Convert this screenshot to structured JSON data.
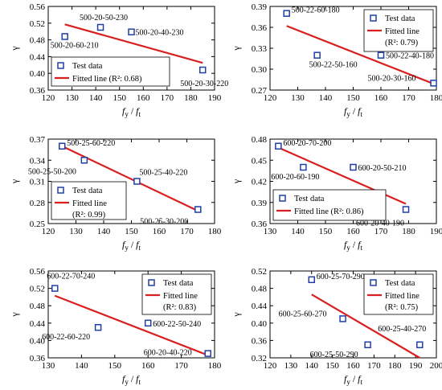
{
  "chart_data": [
    {
      "type": "scatter",
      "xlabel": "f",
      "xlabel_sub1": "y",
      "xlabel_slash": "/",
      "xlabel2": "f",
      "xlabel_sub2": "t",
      "ylabel": "γ",
      "xlim": [
        120,
        190
      ],
      "ylim": [
        0.36,
        0.56
      ],
      "xticks": [
        120,
        130,
        140,
        150,
        160,
        170,
        180,
        190
      ],
      "yticks": [
        0.36,
        0.4,
        0.44,
        0.48,
        0.52,
        0.56
      ],
      "ytick_labels": [
        "0.36",
        "0.40",
        "0.44",
        "0.48",
        "0.52",
        "0.56"
      ],
      "points": [
        {
          "x": 127,
          "y": 0.488,
          "label": "500-20-60-210"
        },
        {
          "x": 142,
          "y": 0.51,
          "label": "500-20-50-230"
        },
        {
          "x": 155,
          "y": 0.499,
          "label": "500-20-40-230"
        },
        {
          "x": 185,
          "y": 0.408,
          "label": "500-20-30-220"
        }
      ],
      "fit": {
        "x": [
          127,
          185
        ],
        "y": [
          0.517,
          0.425
        ]
      },
      "legend": {
        "position": "bottom-left",
        "data_label": "Test data",
        "fit_label": "Fitted line  (R²: 0.68)"
      }
    },
    {
      "type": "scatter",
      "xlabel": "f",
      "xlabel_sub1": "y",
      "xlabel_slash": "/",
      "xlabel2": "f",
      "xlabel_sub2": "t",
      "ylabel": "γ",
      "xlim": [
        120,
        180
      ],
      "ylim": [
        0.27,
        0.39
      ],
      "xticks": [
        120,
        130,
        140,
        150,
        160,
        170,
        180
      ],
      "yticks": [
        0.27,
        0.3,
        0.33,
        0.36,
        0.39
      ],
      "ytick_labels": [
        "0.27",
        "0.30",
        "0.33",
        "0.36",
        "0.39"
      ],
      "points": [
        {
          "x": 126,
          "y": 0.38,
          "label": "500-22-60-180"
        },
        {
          "x": 137,
          "y": 0.32,
          "label": "500-22-50-160"
        },
        {
          "x": 160,
          "y": 0.32,
          "label": "500-22-40-180"
        },
        {
          "x": 179,
          "y": 0.28,
          "label": "500-20-30-160"
        }
      ],
      "fit": {
        "x": [
          126,
          179
        ],
        "y": [
          0.362,
          0.279
        ]
      },
      "legend": {
        "position": "top-right",
        "data_label": "Test data",
        "fit_label": "Fitted line",
        "r2_label": "(R²: 0.79)"
      }
    },
    {
      "type": "scatter",
      "xlabel": "f",
      "xlabel_sub1": "y",
      "xlabel_slash": "/",
      "xlabel2": "f",
      "xlabel_sub2": "t",
      "ylabel": "γ",
      "xlim": [
        120,
        180
      ],
      "ylim": [
        0.25,
        0.37
      ],
      "xticks": [
        120,
        130,
        140,
        150,
        160,
        170,
        180
      ],
      "yticks": [
        0.25,
        0.28,
        0.31,
        0.34,
        0.37
      ],
      "ytick_labels": [
        "0.25",
        "0.28",
        "0.31",
        "0.34",
        "0.37"
      ],
      "points": [
        {
          "x": 125,
          "y": 0.36,
          "label": "500-25-60-220"
        },
        {
          "x": 133,
          "y": 0.34,
          "label": "500-25-50-200"
        },
        {
          "x": 152,
          "y": 0.31,
          "label": "500-25-40-220"
        },
        {
          "x": 174,
          "y": 0.27,
          "label": "500-25-30-200"
        }
      ],
      "fit": {
        "x": [
          125,
          174
        ],
        "y": [
          0.36,
          0.268
        ]
      },
      "legend": {
        "position": "bottom-left",
        "data_label": "Test data",
        "fit_label": "Fitted line",
        "r2_label": "(R²: 0.99)"
      }
    },
    {
      "type": "scatter",
      "xlabel": "f",
      "xlabel_sub1": "y",
      "xlabel_slash": "/",
      "xlabel2": "f",
      "xlabel_sub2": "t",
      "ylabel": "γ",
      "xlim": [
        130,
        190
      ],
      "ylim": [
        0.36,
        0.48
      ],
      "xticks": [
        130,
        140,
        150,
        160,
        170,
        180,
        190
      ],
      "yticks": [
        0.36,
        0.39,
        0.42,
        0.45,
        0.48
      ],
      "ytick_labels": [
        "0.36",
        "0.39",
        "0.42",
        "0.45",
        "0.48"
      ],
      "points": [
        {
          "x": 133,
          "y": 0.47,
          "label": "600-20-70-200"
        },
        {
          "x": 142,
          "y": 0.44,
          "label": "600-20-60-190"
        },
        {
          "x": 160,
          "y": 0.44,
          "label": "600-20-50-210"
        },
        {
          "x": 179,
          "y": 0.38,
          "label": "600-20-40-190"
        }
      ],
      "fit": {
        "x": [
          133,
          179
        ],
        "y": [
          0.468,
          0.388
        ]
      },
      "legend": {
        "position": "bottom-left",
        "data_label": "Test data",
        "fit_label": "Fitted line  (R²: 0.86)"
      }
    },
    {
      "type": "scatter",
      "xlabel": "f",
      "xlabel_sub1": "y",
      "xlabel_slash": "/",
      "xlabel2": "f",
      "xlabel_sub2": "t",
      "ylabel": "γ",
      "xlim": [
        130,
        180
      ],
      "ylim": [
        0.36,
        0.56
      ],
      "xticks": [
        130,
        140,
        150,
        160,
        170,
        180
      ],
      "yticks": [
        0.36,
        0.4,
        0.44,
        0.48,
        0.52,
        0.56
      ],
      "ytick_labels": [
        "0.36",
        "0.40",
        "0.44",
        "0.48",
        "0.52",
        "0.56"
      ],
      "points": [
        {
          "x": 132,
          "y": 0.52,
          "label": "600-22-70-240"
        },
        {
          "x": 145,
          "y": 0.43,
          "label": "600-22-60-220"
        },
        {
          "x": 160,
          "y": 0.44,
          "label": "600-22-50-240"
        },
        {
          "x": 178,
          "y": 0.37,
          "label": "600-20-40-220"
        }
      ],
      "fit": {
        "x": [
          132,
          178
        ],
        "y": [
          0.503,
          0.366
        ]
      },
      "legend": {
        "position": "top-right",
        "data_label": "Test data",
        "fit_label": "Fitted line",
        "r2_label": "(R²: 0.83)"
      }
    },
    {
      "type": "scatter",
      "xlabel": "f",
      "xlabel_sub1": "y",
      "xlabel_slash": "/",
      "xlabel2": "f",
      "xlabel_sub2": "t",
      "ylabel": "γ",
      "xlim": [
        120,
        200
      ],
      "ylim": [
        0.32,
        0.52
      ],
      "xticks": [
        120,
        130,
        140,
        150,
        160,
        170,
        180,
        190,
        200
      ],
      "yticks": [
        0.32,
        0.36,
        0.4,
        0.44,
        0.48,
        0.52
      ],
      "ytick_labels": [
        "0.32",
        "0.36",
        "0.40",
        "0.44",
        "0.48",
        "0.52"
      ],
      "points": [
        {
          "x": 140,
          "y": 0.5,
          "label": "600-25-70-290"
        },
        {
          "x": 155,
          "y": 0.41,
          "label": "600-25-60-270"
        },
        {
          "x": 167,
          "y": 0.35,
          "label": "600-25-50-290"
        },
        {
          "x": 192,
          "y": 0.35,
          "label": "600-25-40-270"
        }
      ],
      "fit": {
        "x": [
          140,
          192
        ],
        "y": [
          0.466,
          0.32
        ]
      },
      "legend": {
        "position": "top-right",
        "data_label": "Test data",
        "fit_label": "Fitted line",
        "r2_label": "(R²: 0.75)"
      }
    }
  ],
  "colors": {
    "marker": "#1f3fa8",
    "fit_line": "#d91f1f",
    "axis": "#000000"
  }
}
